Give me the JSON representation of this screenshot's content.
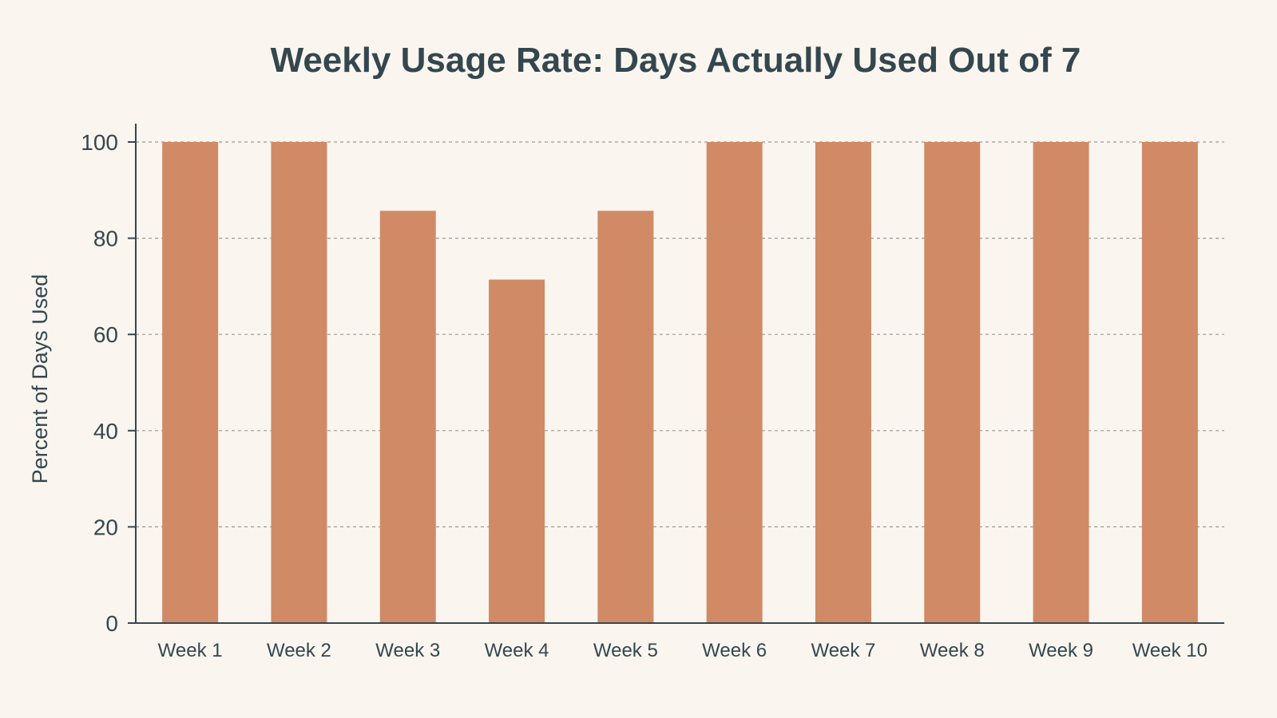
{
  "chart_data": {
    "type": "bar",
    "title": "Weekly Usage Rate: Days Actually Used Out of 7",
    "xlabel": "",
    "ylabel": "Percent of Days Used",
    "categories": [
      "Week 1",
      "Week 2",
      "Week 3",
      "Week 4",
      "Week 5",
      "Week 6",
      "Week 7",
      "Week 8",
      "Week 9",
      "Week 10"
    ],
    "values": [
      100,
      100,
      85.7,
      71.4,
      85.7,
      100,
      100,
      100,
      100,
      100
    ],
    "ylim": [
      0,
      100
    ],
    "yticks": [
      0,
      20,
      40,
      60,
      80,
      100
    ],
    "grid": true,
    "legend": "none",
    "colors": {
      "bar": "#d18a66",
      "text": "#34474f",
      "background": "#faf6ef",
      "grid": "#9a9a96"
    }
  }
}
